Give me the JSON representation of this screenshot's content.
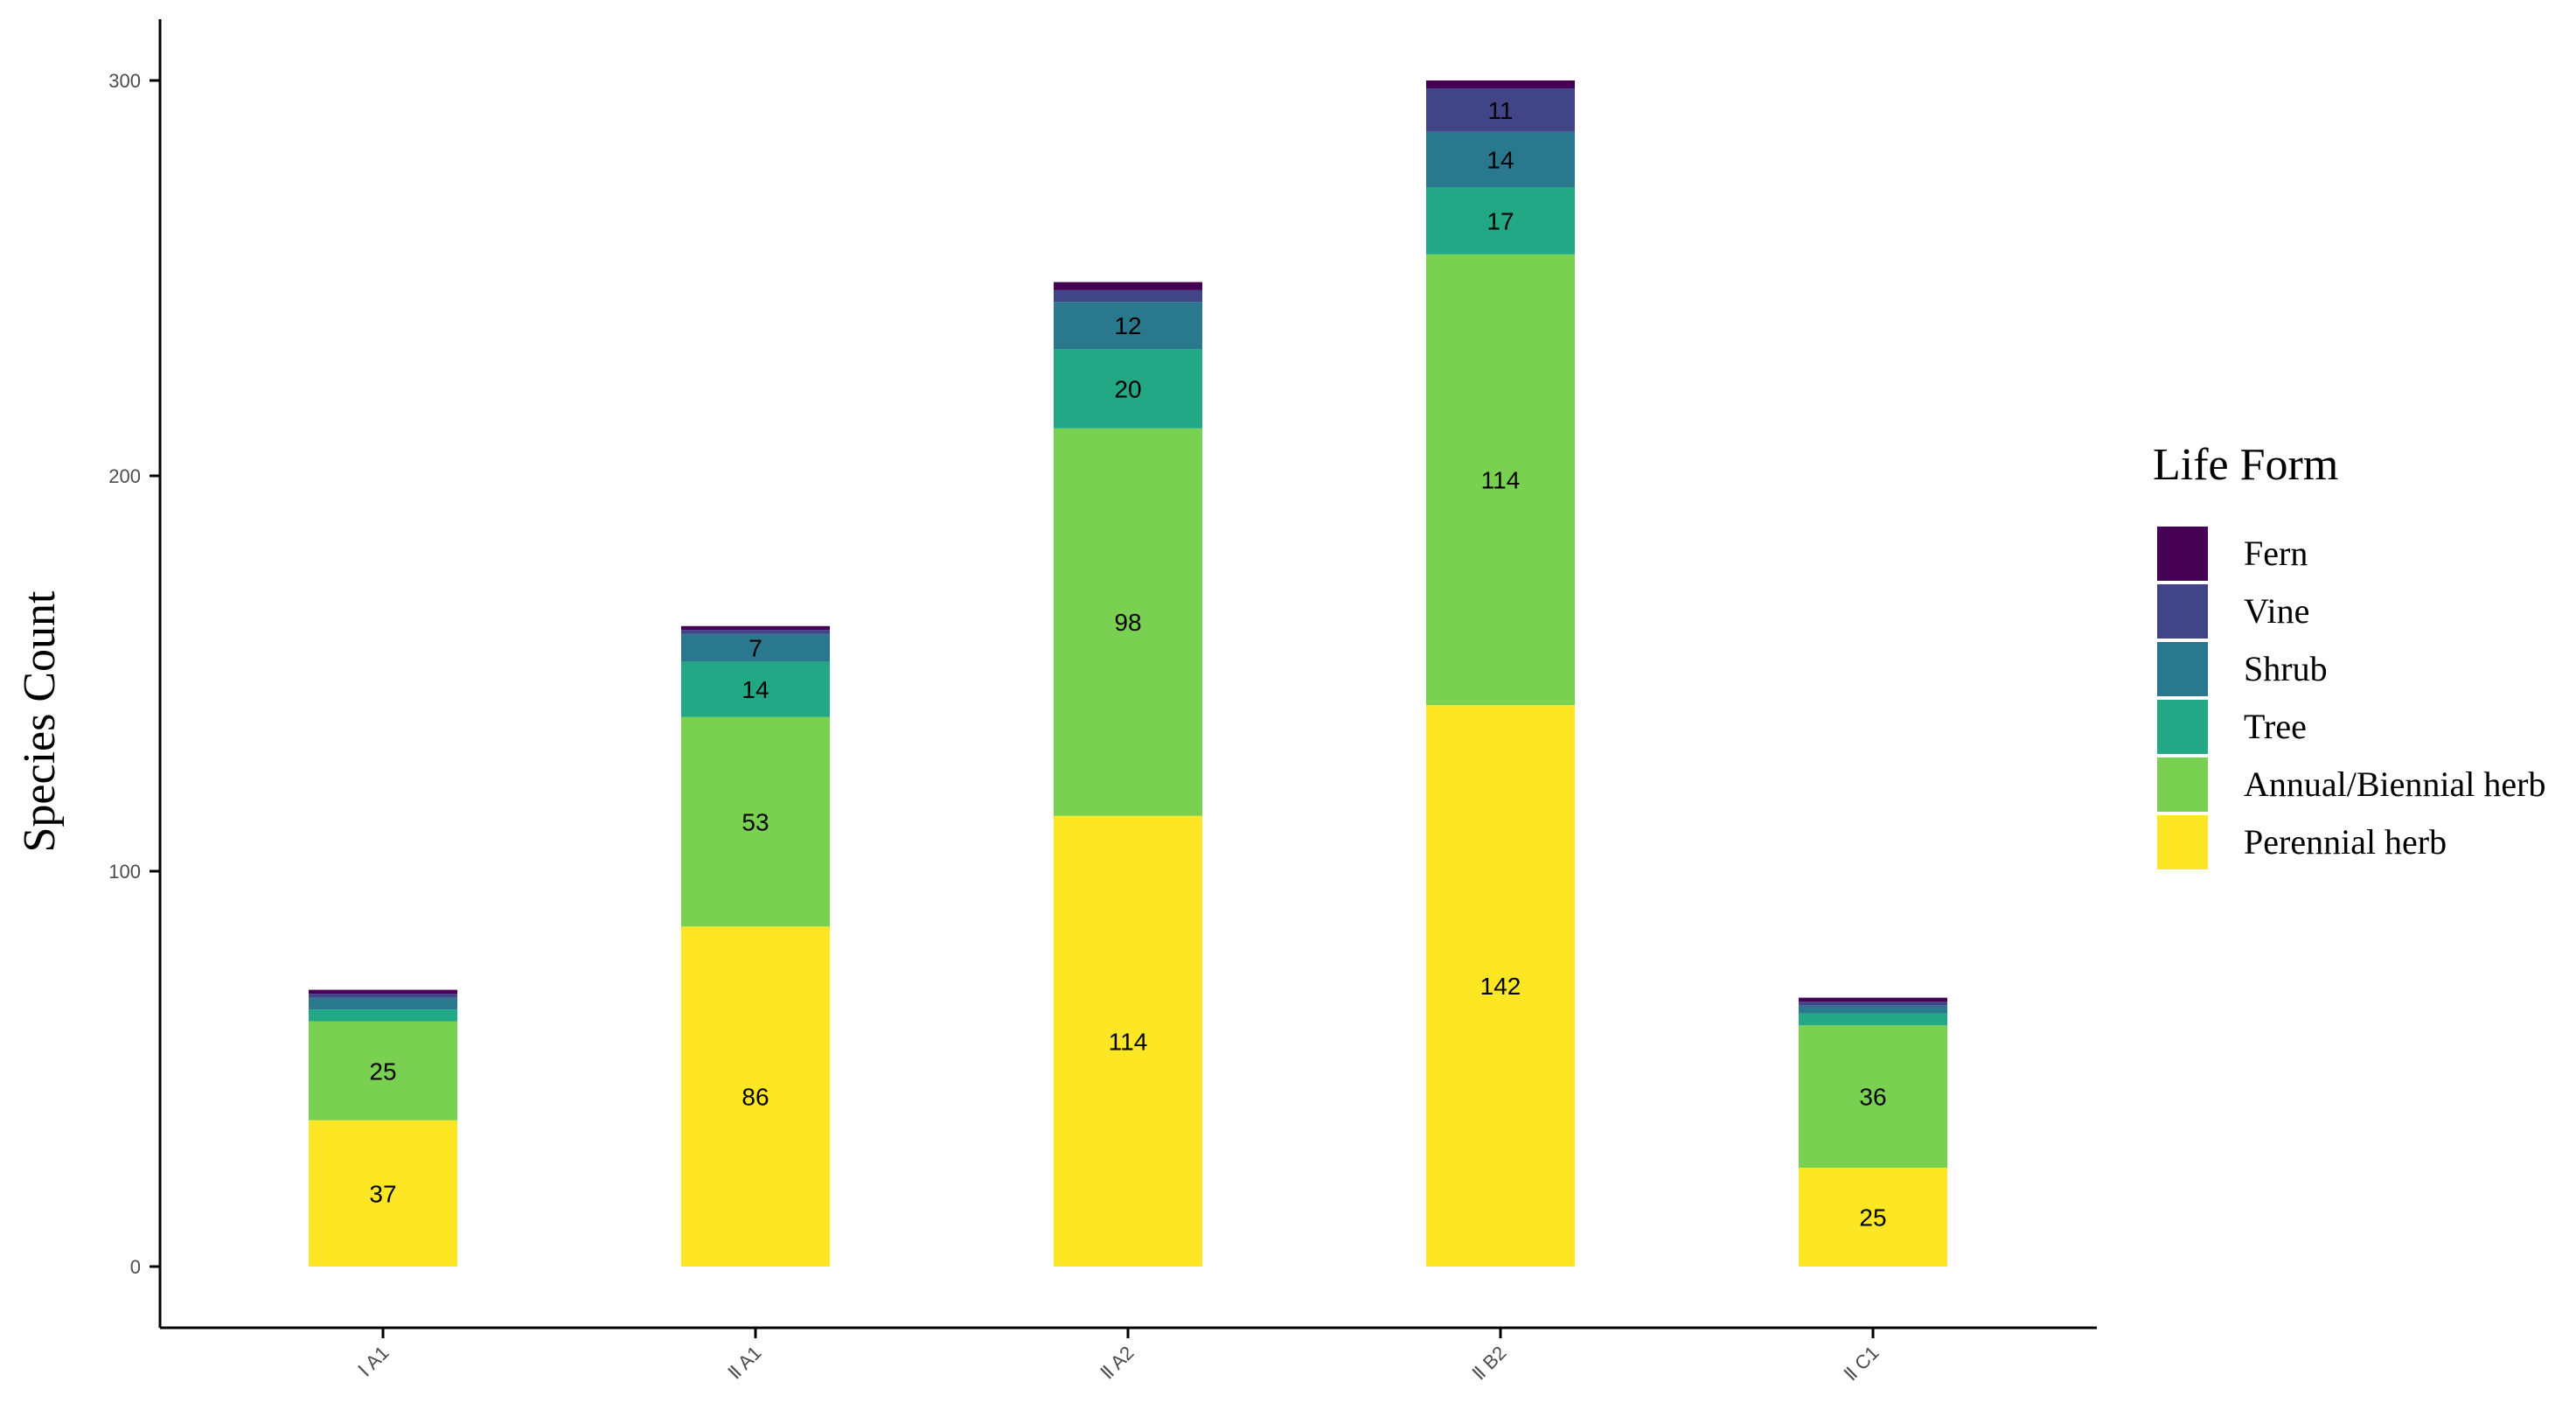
{
  "chart_data": {
    "type": "bar",
    "stacked": true,
    "ylabel": "Species Count",
    "xlabel": "",
    "ylim": [
      0,
      300
    ],
    "yticks": [
      0,
      100,
      200,
      300
    ],
    "categories": [
      "Ⅰ A1",
      "Ⅱ A1",
      "Ⅱ A2",
      "Ⅱ B2",
      "Ⅱ C1"
    ],
    "legend": {
      "title": "Life Form",
      "position": "right"
    },
    "series": [
      {
        "name": "Perennial herb",
        "color": "#FDE725",
        "values": [
          37,
          86,
          114,
          142,
          25
        ],
        "labels": [
          "37",
          "86",
          "114",
          "142",
          "25"
        ]
      },
      {
        "name": "Annual/Biennial herb",
        "color": "#7AD151",
        "values": [
          25,
          53,
          98,
          114,
          36
        ],
        "labels": [
          "25",
          "53",
          "98",
          "114",
          "36"
        ]
      },
      {
        "name": "Tree",
        "color": "#22A884",
        "values": [
          3,
          14,
          20,
          17,
          3
        ],
        "labels": [
          "",
          "14",
          "20",
          "17",
          ""
        ]
      },
      {
        "name": "Shrub",
        "color": "#2A788E",
        "values": [
          3,
          7,
          12,
          14,
          2
        ],
        "labels": [
          "",
          "7",
          "12",
          "14",
          ""
        ]
      },
      {
        "name": "Vine",
        "color": "#414487",
        "values": [
          1,
          1,
          3,
          11,
          1
        ],
        "labels": [
          "",
          "",
          "",
          "11",
          ""
        ]
      },
      {
        "name": "Fern",
        "color": "#440154",
        "values": [
          1,
          1,
          2,
          2,
          1
        ],
        "labels": [
          "",
          "",
          "",
          "",
          ""
        ]
      }
    ],
    "grid": false
  }
}
